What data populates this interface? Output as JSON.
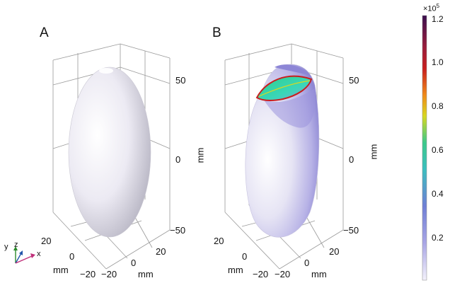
{
  "panels": {
    "a": {
      "label": "A",
      "z_ticks": [
        "50",
        "0",
        "−50"
      ],
      "z_unit": "mm",
      "y_ticks": [
        "20",
        "0",
        "−20"
      ],
      "y_unit": "mm",
      "x_ticks": [
        "20",
        "0",
        "−20"
      ],
      "x_unit": "mm"
    },
    "b": {
      "label": "B",
      "z_ticks": [
        "50",
        "0",
        "−50"
      ],
      "z_unit": "mm",
      "y_ticks": [
        "20",
        "0",
        "−20"
      ],
      "y_unit": "mm",
      "x_ticks": [
        "20",
        "0",
        "−20"
      ],
      "x_unit": "mm"
    }
  },
  "triad": {
    "y": "y",
    "z": "z",
    "x": "x"
  },
  "colorbar": {
    "exponent_base": "×10",
    "exponent_power": "5",
    "ticks": [
      "1.2",
      "1.0",
      "0.8",
      "0.6",
      "0.4",
      "0.2"
    ],
    "colors": {
      "top": "#3b0f4f",
      "red": "#c81e1e",
      "orange": "#f08a1a",
      "yellow": "#d8d820",
      "green": "#3cc98a",
      "teal": "#3bbfbf",
      "blue": "#6f7fd6",
      "violet": "#a9a6e6",
      "bottom": "#f3f1fb"
    }
  }
}
